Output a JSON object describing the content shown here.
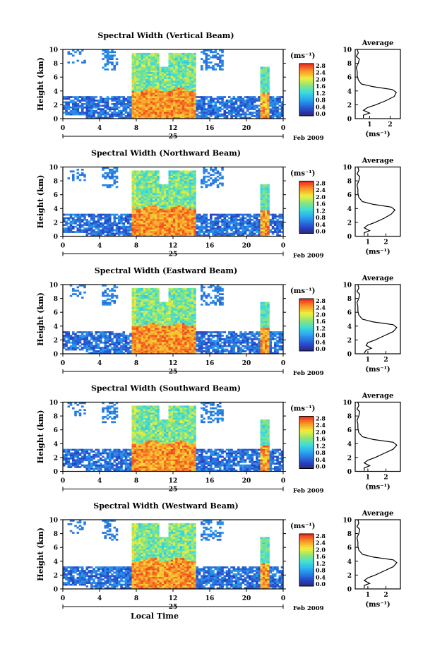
{
  "chart_data": [
    {
      "type": "heatmap",
      "title": "Spectral Width (Vertical Beam)",
      "ylabel": "Height (km)",
      "xticks": [
        "0",
        "4",
        "8",
        "12",
        "16",
        "20",
        "0"
      ],
      "xlim": [
        0,
        24
      ],
      "ylim": [
        0,
        10
      ],
      "yticks": [
        "0",
        "2",
        "4",
        "6",
        "8",
        "10"
      ],
      "date_day": "25",
      "date_rest": "Feb 2009",
      "colorbar": {
        "label": "(ms⁻¹)",
        "range": [
          0,
          2.8
        ],
        "ticks": [
          "2.8",
          "2.4",
          "2.0",
          "1.6",
          "1.2",
          "0.8",
          "0.4",
          "0.0"
        ]
      },
      "profile": {
        "title": "Average",
        "xlabel": "(ms⁻¹)",
        "xticks": [
          "1",
          "2"
        ],
        "xlim": [
          0.3,
          2.5
        ],
        "ylim": [
          0,
          10
        ],
        "yticks": [
          "0",
          "2",
          "4",
          "6",
          "8",
          "10"
        ],
        "x": [
          0.7,
          0.7,
          1.0,
          0.7,
          0.9,
          1.3,
          1.8,
          2.2,
          2.3,
          2.1,
          1.2,
          0.6,
          0.45,
          0.4,
          0.4,
          0.35,
          0.45,
          0.5,
          0.35,
          0.45,
          0.4
        ],
        "y": [
          0.1,
          0.5,
          0.8,
          1.2,
          1.6,
          2.0,
          2.6,
          3.2,
          3.8,
          4.2,
          4.6,
          5.0,
          5.6,
          6.2,
          6.8,
          7.4,
          8.0,
          8.6,
          9.0,
          9.5,
          10.0
        ]
      }
    },
    {
      "type": "heatmap",
      "title": "Spectral Width (Northward Beam)",
      "ylabel": "Height (km)",
      "xticks": [
        "0",
        "4",
        "8",
        "12",
        "16",
        "20",
        "0"
      ],
      "xlim": [
        0,
        24
      ],
      "ylim": [
        0,
        10
      ],
      "yticks": [
        "0",
        "2",
        "4",
        "6",
        "8",
        "10"
      ],
      "date_day": "25",
      "date_rest": "Feb 2009",
      "colorbar": {
        "label": "(ms⁻¹)",
        "range": [
          0,
          2.8
        ],
        "ticks": [
          "2.8",
          "2.4",
          "2.0",
          "1.6",
          "1.2",
          "0.8",
          "0.4",
          "0.0"
        ]
      },
      "profile": {
        "title": "Average",
        "xlabel": "(ms⁻¹)",
        "xticks": [
          "1",
          "2"
        ],
        "xlim": [
          0.3,
          2.8
        ],
        "ylim": [
          0,
          10
        ],
        "yticks": [
          "0",
          "2",
          "4",
          "6",
          "8",
          "10"
        ],
        "x": [
          0.8,
          0.8,
          1.1,
          0.8,
          1.0,
          1.4,
          1.9,
          2.3,
          2.5,
          2.3,
          1.3,
          0.7,
          0.5,
          0.45,
          0.45,
          0.4,
          0.5,
          0.55,
          0.4,
          0.5,
          0.45
        ],
        "y": [
          0.1,
          0.5,
          0.8,
          1.2,
          1.6,
          2.0,
          2.6,
          3.2,
          3.8,
          4.2,
          4.6,
          5.0,
          5.6,
          6.2,
          6.8,
          7.4,
          8.0,
          8.6,
          9.0,
          9.5,
          10.0
        ]
      }
    },
    {
      "type": "heatmap",
      "title": "Spectral Width (Eastward Beam)",
      "ylabel": "Height (km)",
      "xticks": [
        "0",
        "4",
        "8",
        "12",
        "16",
        "20",
        "0"
      ],
      "xlim": [
        0,
        24
      ],
      "ylim": [
        0,
        10
      ],
      "yticks": [
        "0",
        "2",
        "4",
        "6",
        "8",
        "10"
      ],
      "date_day": "25",
      "date_rest": "Feb 2009",
      "colorbar": {
        "label": "(ms⁻¹)",
        "range": [
          0,
          2.8
        ],
        "ticks": [
          "2.8",
          "2.4",
          "2.0",
          "1.6",
          "1.2",
          "0.8",
          "0.4",
          "0.0"
        ]
      },
      "profile": {
        "title": "Average",
        "xlabel": "(ms⁻¹)",
        "xticks": [
          "1",
          "2"
        ],
        "xlim": [
          0.3,
          2.8
        ],
        "ylim": [
          0,
          10
        ],
        "yticks": [
          "0",
          "2",
          "4",
          "6",
          "8",
          "10"
        ],
        "x": [
          0.8,
          0.9,
          1.2,
          0.9,
          1.0,
          1.4,
          1.9,
          2.4,
          2.6,
          2.4,
          1.3,
          0.7,
          0.5,
          0.45,
          0.45,
          0.4,
          0.5,
          0.55,
          0.4,
          0.5,
          0.45
        ],
        "y": [
          0.1,
          0.5,
          0.8,
          1.2,
          1.6,
          2.0,
          2.6,
          3.2,
          3.8,
          4.2,
          4.6,
          5.0,
          5.6,
          6.2,
          6.8,
          7.4,
          8.0,
          8.6,
          9.0,
          9.5,
          10.0
        ]
      }
    },
    {
      "type": "heatmap",
      "title": "Spectral Width (Southward Beam)",
      "ylabel": "Height (km)",
      "xticks": [
        "0",
        "4",
        "8",
        "12",
        "16",
        "20",
        "0"
      ],
      "xlim": [
        0,
        24
      ],
      "ylim": [
        0,
        10
      ],
      "yticks": [
        "0",
        "2",
        "4",
        "6",
        "8",
        "10"
      ],
      "date_day": "25",
      "date_rest": "Feb 2009",
      "colorbar": {
        "label": "(ms⁻¹)",
        "range": [
          0,
          2.8
        ],
        "ticks": [
          "2.8",
          "2.4",
          "2.0",
          "1.6",
          "1.2",
          "0.8",
          "0.4",
          "0.0"
        ]
      },
      "profile": {
        "title": "Average",
        "xlabel": "(ms⁻¹)",
        "xticks": [
          "1",
          "2"
        ],
        "xlim": [
          0.3,
          2.8
        ],
        "ylim": [
          0,
          10
        ],
        "yticks": [
          "0",
          "2",
          "4",
          "6",
          "8",
          "10"
        ],
        "x": [
          0.8,
          0.8,
          1.1,
          0.8,
          1.0,
          1.4,
          1.9,
          2.4,
          2.6,
          2.4,
          1.3,
          0.7,
          0.5,
          0.45,
          0.45,
          0.4,
          0.5,
          0.55,
          0.4,
          0.5,
          0.45
        ],
        "y": [
          0.1,
          0.5,
          0.8,
          1.2,
          1.6,
          2.0,
          2.6,
          3.2,
          3.8,
          4.2,
          4.6,
          5.0,
          5.6,
          6.2,
          6.8,
          7.4,
          8.0,
          8.6,
          9.0,
          9.5,
          10.0
        ]
      }
    },
    {
      "type": "heatmap",
      "title": "Spectral Width (Westward Beam)",
      "ylabel": "Height (km)",
      "xlabel": "Local Time",
      "xticks": [
        "0",
        "4",
        "8",
        "12",
        "16",
        "20",
        "0"
      ],
      "xlim": [
        0,
        24
      ],
      "ylim": [
        0,
        10
      ],
      "yticks": [
        "0",
        "2",
        "4",
        "6",
        "8",
        "10"
      ],
      "date_day": "25",
      "date_rest": "Feb 2009",
      "colorbar": {
        "label": "(ms⁻¹)",
        "range": [
          0,
          2.8
        ],
        "ticks": [
          "2.8",
          "2.4",
          "2.0",
          "1.6",
          "1.2",
          "0.8",
          "0.4",
          "0.0"
        ]
      },
      "profile": {
        "title": "Average",
        "xlabel": "(ms⁻¹)",
        "xticks": [
          "1",
          "2"
        ],
        "xlim": [
          0.3,
          2.8
        ],
        "ylim": [
          0,
          10
        ],
        "yticks": [
          "0",
          "2",
          "4",
          "6",
          "8",
          "10"
        ],
        "x": [
          0.8,
          0.8,
          1.1,
          0.8,
          1.0,
          1.4,
          1.9,
          2.4,
          2.6,
          2.4,
          1.3,
          0.7,
          0.5,
          0.45,
          0.45,
          0.4,
          0.5,
          0.55,
          0.4,
          0.5,
          0.45
        ],
        "y": [
          0.1,
          0.5,
          0.8,
          1.2,
          1.6,
          2.0,
          2.6,
          3.2,
          3.8,
          4.2,
          4.6,
          5.0,
          5.6,
          6.2,
          6.8,
          7.4,
          8.0,
          8.6,
          9.0,
          9.5,
          10.0
        ]
      }
    }
  ]
}
